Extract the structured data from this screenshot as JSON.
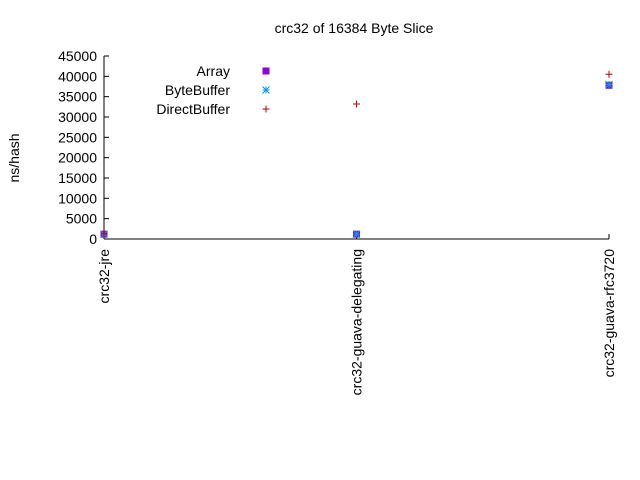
{
  "chart_data": {
    "type": "scatter",
    "title": "crc32 of 16384 Byte Slice",
    "xlabel": "",
    "ylabel": "ns/hash",
    "categories": [
      "crc32-jre",
      "crc32-guava-delegating",
      "crc32-guava-rfc3720"
    ],
    "ylim": [
      0,
      45000
    ],
    "yticks": [
      0,
      5000,
      10000,
      15000,
      20000,
      25000,
      30000,
      35000,
      40000,
      45000
    ],
    "grid": false,
    "legend_position": "top-left",
    "series": [
      {
        "name": "Array",
        "marker": "filled-square",
        "color": "#9400d3",
        "values": [
          1200,
          1200,
          37800
        ]
      },
      {
        "name": "ByteBuffer",
        "marker": "asterisk",
        "color": "#009ee0",
        "values": [
          1200,
          1200,
          38000
        ]
      },
      {
        "name": "DirectBuffer",
        "marker": "plus",
        "color": "#c00000",
        "values": [
          1300,
          33200,
          40500
        ]
      }
    ]
  }
}
